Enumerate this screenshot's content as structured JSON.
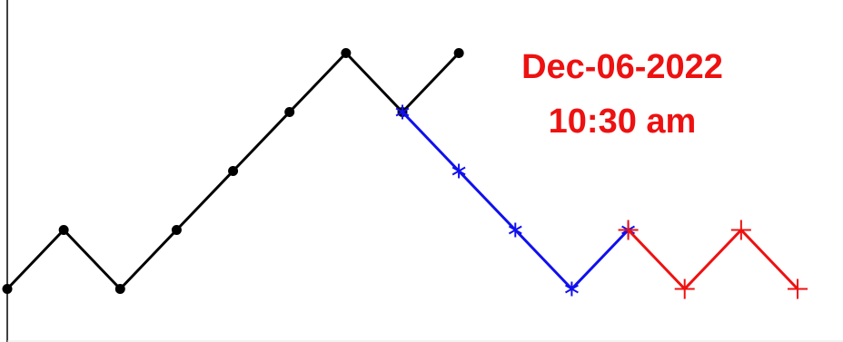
{
  "chart_data": {
    "type": "line",
    "title": "",
    "xlabel": "",
    "ylabel": "",
    "xlim": [
      0,
      14
    ],
    "ylim": [
      -0.9,
      4.9
    ],
    "grid": false,
    "series": [
      {
        "color": "#000000",
        "marker": "dot",
        "points": [
          [
            0,
            0
          ],
          [
            1,
            1
          ],
          [
            2,
            0
          ],
          [
            3,
            1
          ],
          [
            4,
            2
          ],
          [
            5,
            3
          ],
          [
            6,
            4
          ],
          [
            7,
            3
          ],
          [
            8,
            4
          ]
        ]
      },
      {
        "color": "#1010ee",
        "marker": "star",
        "points": [
          [
            7,
            3
          ],
          [
            8,
            2
          ],
          [
            9,
            1
          ],
          [
            10,
            0
          ],
          [
            11,
            1
          ]
        ]
      },
      {
        "color": "#ee1111",
        "marker": "plus",
        "points": [
          [
            11,
            1
          ],
          [
            12,
            0
          ],
          [
            13,
            1
          ],
          [
            14,
            0
          ]
        ]
      }
    ],
    "annotations": [
      "Dec-06-2022",
      "10:30 am"
    ],
    "annotation_color": "#ee1111"
  }
}
